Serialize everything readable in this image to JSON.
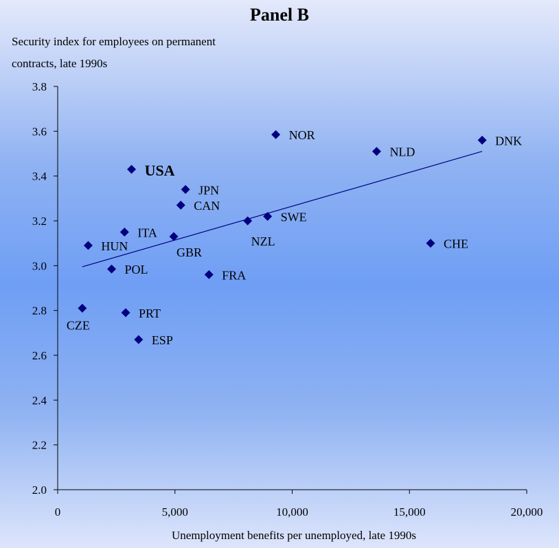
{
  "chart_data": {
    "type": "scatter",
    "title": "Panel B",
    "ylabel_lines": [
      "Security index for employees on permanent",
      "contracts, late 1990s"
    ],
    "xlabel": "Unemployment benefits per unemployed, late 1990s",
    "xlim": [
      0,
      20000
    ],
    "ylim": [
      2.0,
      3.8
    ],
    "xticks": [
      0,
      5000,
      10000,
      15000,
      20000
    ],
    "xtick_labels": [
      "0",
      "5,000",
      "10,000",
      "15,000",
      "20,000"
    ],
    "yticks": [
      2.0,
      2.2,
      2.4,
      2.6,
      2.8,
      3.0,
      3.2,
      3.4,
      3.6,
      3.8
    ],
    "ytick_labels": [
      "2.0",
      "2.2",
      "2.4",
      "2.6",
      "2.8",
      "3.0",
      "3.2",
      "3.4",
      "3.6",
      "3.8"
    ],
    "marker_color": "#000080",
    "points": [
      {
        "label": "CZE",
        "x": 1050,
        "y": 2.81,
        "label_pos": "below-left"
      },
      {
        "label": "HUN",
        "x": 1300,
        "y": 3.09,
        "label_pos": "right"
      },
      {
        "label": "POL",
        "x": 2300,
        "y": 2.985,
        "label_pos": "right"
      },
      {
        "label": "ITA",
        "x": 2850,
        "y": 3.15,
        "label_pos": "right"
      },
      {
        "label": "PRT",
        "x": 2900,
        "y": 2.79,
        "label_pos": "right"
      },
      {
        "label": "USA",
        "x": 3150,
        "y": 3.43,
        "label_pos": "right",
        "emphasis": true
      },
      {
        "label": "ESP",
        "x": 3450,
        "y": 2.67,
        "label_pos": "right"
      },
      {
        "label": "GBR",
        "x": 4950,
        "y": 3.13,
        "label_pos": "below-right"
      },
      {
        "label": "CAN",
        "x": 5250,
        "y": 3.27,
        "label_pos": "right"
      },
      {
        "label": "JPN",
        "x": 5450,
        "y": 3.34,
        "label_pos": "right"
      },
      {
        "label": "FRA",
        "x": 6450,
        "y": 2.96,
        "label_pos": "right"
      },
      {
        "label": "NZL",
        "x": 8100,
        "y": 3.2,
        "label_pos": "below"
      },
      {
        "label": "SWE",
        "x": 8950,
        "y": 3.22,
        "label_pos": "right"
      },
      {
        "label": "NOR",
        "x": 9300,
        "y": 3.585,
        "label_pos": "right"
      },
      {
        "label": "NLD",
        "x": 13600,
        "y": 3.51,
        "label_pos": "right"
      },
      {
        "label": "CHE",
        "x": 15900,
        "y": 3.1,
        "label_pos": "right"
      },
      {
        "label": "DNK",
        "x": 18100,
        "y": 3.56,
        "label_pos": "right"
      }
    ],
    "trendline": {
      "x": [
        1050,
        18100
      ],
      "y": [
        2.995,
        3.51
      ]
    },
    "grid": false,
    "legend": "none"
  }
}
